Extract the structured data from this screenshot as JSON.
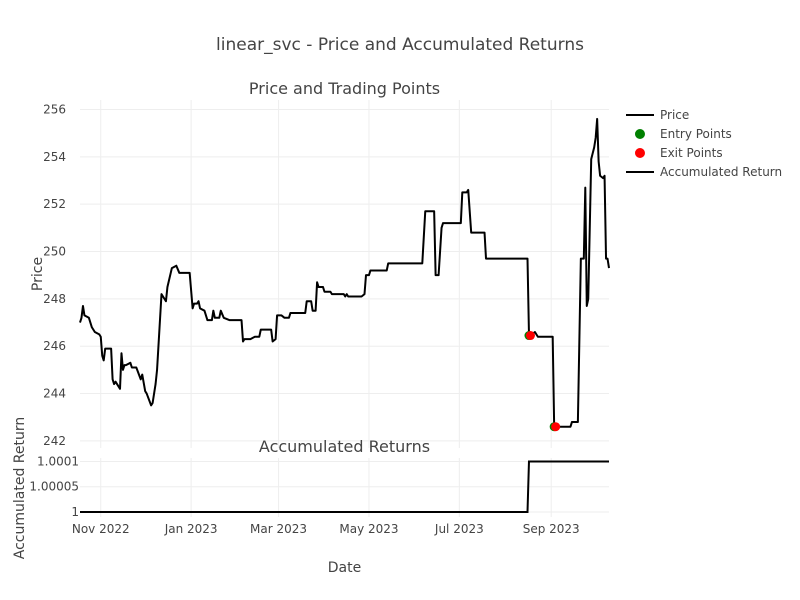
{
  "figure": {
    "title": "linear_svc - Price and Accumulated Returns"
  },
  "chart_data": [
    {
      "type": "line",
      "title": "Price and Trading Points",
      "ylabel": "Price",
      "xlabel": "",
      "ylim": [
        241.7,
        256.4
      ],
      "yticks": [
        242,
        244,
        246,
        248,
        250,
        252,
        254,
        256
      ],
      "series": [
        {
          "name": "Price",
          "color": "#000000",
          "points": [
            [
              "2022-10-18",
              247.0
            ],
            [
              "2022-10-19",
              247.2
            ],
            [
              "2022-10-20",
              247.7
            ],
            [
              "2022-10-21",
              247.3
            ],
            [
              "2022-10-24",
              247.2
            ],
            [
              "2022-10-26",
              246.8
            ],
            [
              "2022-10-28",
              246.6
            ],
            [
              "2022-10-31",
              246.5
            ],
            [
              "2022-11-01",
              246.4
            ],
            [
              "2022-11-02",
              245.6
            ],
            [
              "2022-11-03",
              245.4
            ],
            [
              "2022-11-04",
              245.9
            ],
            [
              "2022-11-07",
              245.9
            ],
            [
              "2022-11-08",
              245.9
            ],
            [
              "2022-11-09",
              244.6
            ],
            [
              "2022-11-10",
              244.4
            ],
            [
              "2022-11-11",
              244.5
            ],
            [
              "2022-11-14",
              244.2
            ],
            [
              "2022-11-15",
              245.7
            ],
            [
              "2022-11-16",
              245.0
            ],
            [
              "2022-11-17",
              245.2
            ],
            [
              "2022-11-18",
              245.2
            ],
            [
              "2022-11-21",
              245.3
            ],
            [
              "2022-11-22",
              245.1
            ],
            [
              "2022-11-25",
              245.1
            ],
            [
              "2022-11-28",
              244.6
            ],
            [
              "2022-11-29",
              244.8
            ],
            [
              "2022-12-01",
              244.1
            ],
            [
              "2022-12-02",
              244.0
            ],
            [
              "2022-12-05",
              243.5
            ],
            [
              "2022-12-06",
              243.6
            ],
            [
              "2022-12-08",
              244.4
            ],
            [
              "2022-12-09",
              245.0
            ],
            [
              "2022-12-12",
              248.2
            ],
            [
              "2022-12-13",
              248.1
            ],
            [
              "2022-12-15",
              247.9
            ],
            [
              "2022-12-16",
              248.5
            ],
            [
              "2022-12-19",
              249.3
            ],
            [
              "2022-12-22",
              249.4
            ],
            [
              "2022-12-24",
              249.1
            ],
            [
              "2022-12-27",
              249.1
            ],
            [
              "2022-12-31",
              249.1
            ],
            [
              "2023-01-02",
              247.6
            ],
            [
              "2023-01-03",
              247.8
            ],
            [
              "2023-01-05",
              247.8
            ],
            [
              "2023-01-06",
              247.9
            ],
            [
              "2023-01-07",
              247.6
            ],
            [
              "2023-01-10",
              247.5
            ],
            [
              "2023-01-12",
              247.1
            ],
            [
              "2023-01-15",
              247.1
            ],
            [
              "2023-01-16",
              247.5
            ],
            [
              "2023-01-17",
              247.2
            ],
            [
              "2023-01-20",
              247.2
            ],
            [
              "2023-01-21",
              247.5
            ],
            [
              "2023-01-23",
              247.2
            ],
            [
              "2023-01-27",
              247.1
            ],
            [
              "2023-02-01",
              247.1
            ],
            [
              "2023-02-04",
              247.1
            ],
            [
              "2023-02-05",
              246.2
            ],
            [
              "2023-02-06",
              246.3
            ],
            [
              "2023-02-10",
              246.3
            ],
            [
              "2023-02-13",
              246.4
            ],
            [
              "2023-02-16",
              246.4
            ],
            [
              "2023-02-17",
              246.7
            ],
            [
              "2023-02-22",
              246.7
            ],
            [
              "2023-02-24",
              246.7
            ],
            [
              "2023-02-25",
              246.2
            ],
            [
              "2023-02-27",
              246.3
            ],
            [
              "2023-02-28",
              247.3
            ],
            [
              "2023-03-03",
              247.3
            ],
            [
              "2023-03-05",
              247.2
            ],
            [
              "2023-03-08",
              247.2
            ],
            [
              "2023-03-09",
              247.4
            ],
            [
              "2023-03-12",
              247.4
            ],
            [
              "2023-03-15",
              247.4
            ],
            [
              "2023-03-19",
              247.4
            ],
            [
              "2023-03-20",
              247.9
            ],
            [
              "2023-03-23",
              247.9
            ],
            [
              "2023-03-24",
              247.5
            ],
            [
              "2023-03-26",
              247.5
            ],
            [
              "2023-03-27",
              248.7
            ],
            [
              "2023-03-28",
              248.5
            ],
            [
              "2023-03-31",
              248.5
            ],
            [
              "2023-04-01",
              248.3
            ],
            [
              "2023-04-05",
              248.3
            ],
            [
              "2023-04-06",
              248.2
            ],
            [
              "2023-04-11",
              248.2
            ],
            [
              "2023-04-14",
              248.2
            ],
            [
              "2023-04-15",
              248.1
            ],
            [
              "2023-04-16",
              248.2
            ],
            [
              "2023-04-17",
              248.1
            ],
            [
              "2023-04-21",
              248.1
            ],
            [
              "2023-04-26",
              248.1
            ],
            [
              "2023-04-28",
              248.2
            ],
            [
              "2023-04-29",
              249.0
            ],
            [
              "2023-05-01",
              249.0
            ],
            [
              "2023-05-02",
              249.2
            ],
            [
              "2023-05-06",
              249.2
            ],
            [
              "2023-05-10",
              249.2
            ],
            [
              "2023-05-13",
              249.2
            ],
            [
              "2023-05-14",
              249.5
            ],
            [
              "2023-05-18",
              249.5
            ],
            [
              "2023-05-23",
              249.5
            ],
            [
              "2023-05-27",
              249.5
            ],
            [
              "2023-06-01",
              249.5
            ],
            [
              "2023-06-06",
              249.5
            ],
            [
              "2023-06-08",
              251.7
            ],
            [
              "2023-06-11",
              251.7
            ],
            [
              "2023-06-14",
              251.7
            ],
            [
              "2023-06-15",
              249.0
            ],
            [
              "2023-06-17",
              249.0
            ],
            [
              "2023-06-19",
              251.0
            ],
            [
              "2023-06-20",
              251.2
            ],
            [
              "2023-06-24",
              251.2
            ],
            [
              "2023-06-29",
              251.2
            ],
            [
              "2023-07-02",
              251.2
            ],
            [
              "2023-07-03",
              252.5
            ],
            [
              "2023-07-06",
              252.5
            ],
            [
              "2023-07-07",
              252.6
            ],
            [
              "2023-07-09",
              250.8
            ],
            [
              "2023-07-12",
              250.8
            ],
            [
              "2023-07-14",
              250.8
            ],
            [
              "2023-07-18",
              250.8
            ],
            [
              "2023-07-19",
              249.7
            ],
            [
              "2023-07-25",
              249.7
            ],
            [
              "2023-08-01",
              249.7
            ],
            [
              "2023-08-08",
              249.7
            ],
            [
              "2023-08-16",
              249.7
            ],
            [
              "2023-08-17",
              246.5
            ],
            [
              "2023-08-19",
              246.5
            ],
            [
              "2023-08-21",
              246.6
            ],
            [
              "2023-08-23",
              246.4
            ],
            [
              "2023-08-28",
              246.4
            ],
            [
              "2023-09-02",
              246.4
            ],
            [
              "2023-09-03",
              242.6
            ],
            [
              "2023-09-07",
              242.6
            ],
            [
              "2023-09-11",
              242.6
            ],
            [
              "2023-09-14",
              242.6
            ],
            [
              "2023-09-15",
              242.8
            ],
            [
              "2023-09-19",
              242.8
            ],
            [
              "2023-09-21",
              249.7
            ],
            [
              "2023-09-23",
              249.7
            ],
            [
              "2023-09-24",
              252.7
            ],
            [
              "2023-09-25",
              247.7
            ],
            [
              "2023-09-26",
              248.0
            ],
            [
              "2023-09-28",
              253.9
            ],
            [
              "2023-09-30",
              254.4
            ],
            [
              "2023-10-01",
              254.8
            ],
            [
              "2023-10-02",
              255.6
            ],
            [
              "2023-10-03",
              253.8
            ],
            [
              "2023-10-04",
              253.2
            ],
            [
              "2023-10-06",
              253.1
            ],
            [
              "2023-10-07",
              253.2
            ],
            [
              "2023-10-08",
              249.7
            ],
            [
              "2023-10-09",
              249.7
            ],
            [
              "2023-10-10",
              249.3
            ]
          ]
        },
        {
          "name": "Entry Points",
          "color": "#008000",
          "points": [
            [
              "2023-08-17",
              246.45
            ],
            [
              "2023-09-03",
              242.6
            ]
          ]
        },
        {
          "name": "Exit Points",
          "color": "#ff0000",
          "points": [
            [
              "2023-08-18",
              246.45
            ],
            [
              "2023-09-04",
              242.6
            ]
          ]
        }
      ]
    },
    {
      "type": "line",
      "title": "Accumulated Returns",
      "ylabel": "Accumulated Return",
      "xlabel": "Date",
      "ylim": [
        0.99999,
        1.000107
      ],
      "yticks": [
        1,
        1.00005,
        1.0001
      ],
      "ytick_labels": [
        "1",
        "1.00005",
        "1.0001"
      ],
      "xlim": [
        "2022-10-18",
        "2023-10-10"
      ],
      "xticks": [
        "2022-11-01",
        "2023-01-01",
        "2023-03-01",
        "2023-05-01",
        "2023-07-01",
        "2023-09-01"
      ],
      "xtick_labels": [
        "Nov 2022",
        "Jan 2023",
        "Mar 2023",
        "May 2023",
        "Jul 2023",
        "Sep 2023"
      ],
      "series": [
        {
          "name": "Accumulated Return",
          "color": "#000000",
          "points": [
            [
              "2022-10-18",
              1.0
            ],
            [
              "2023-08-16",
              1.0
            ],
            [
              "2023-08-17",
              1.0001
            ],
            [
              "2023-10-10",
              1.0001
            ]
          ]
        }
      ]
    }
  ],
  "legend": {
    "placement": "top-right",
    "items": [
      {
        "label": "Price",
        "kind": "line",
        "color": "#000000"
      },
      {
        "label": "Entry Points",
        "kind": "marker",
        "color": "#008000"
      },
      {
        "label": "Exit Points",
        "kind": "marker",
        "color": "#ff0000"
      },
      {
        "label": "Accumulated Return",
        "kind": "line",
        "color": "#000000"
      }
    ]
  }
}
